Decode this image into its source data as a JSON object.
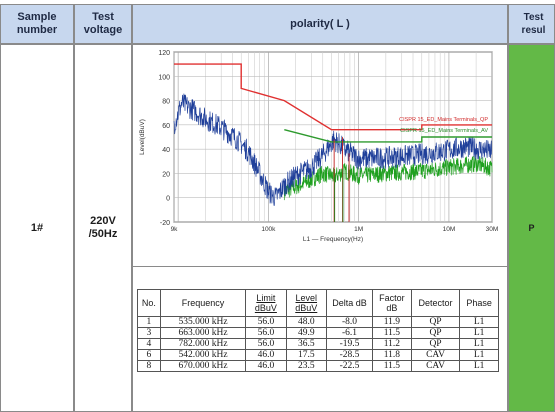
{
  "header": {
    "sample_number": "Sample number",
    "test_voltage": "Test voltage",
    "polarity": "polarity( L )",
    "test_result": "Test resul"
  },
  "row": {
    "sample": "1#",
    "voltage": "220V /50Hz",
    "result": "P"
  },
  "chart_data": {
    "type": "line",
    "xlabel": "L1 — Frequency(Hz)",
    "ylabel": "Level(dBuV)",
    "x_scale": "log",
    "xlim": [
      9000,
      30000000
    ],
    "ylim": [
      -20,
      120
    ],
    "x_ticks": [
      "9k",
      "100k",
      "1M",
      "10M",
      "30M"
    ],
    "y_ticks": [
      "120",
      "100",
      "80",
      "60",
      "40",
      "20",
      "0",
      "-20"
    ],
    "grid": true,
    "legend": [
      "CISPR 15_ED_Mains Terminals_QP",
      "CISPR 15_ED_Mains Terminals_AV"
    ],
    "series": [
      {
        "name": "CISPR 15_ED_Mains Terminals_QP",
        "color": "#e03030",
        "points": [
          [
            9000,
            110
          ],
          [
            50000,
            110
          ],
          [
            50000,
            90
          ],
          [
            150000,
            80
          ],
          [
            500000,
            56
          ],
          [
            5000000,
            56
          ],
          [
            5000000,
            60
          ],
          [
            30000000,
            60
          ]
        ]
      },
      {
        "name": "CISPR 15_ED_Mains Terminals_AV",
        "color": "#2e9a2e",
        "points": [
          [
            150000,
            56
          ],
          [
            500000,
            46
          ],
          [
            5000000,
            46
          ],
          [
            5000000,
            50
          ],
          [
            30000000,
            50
          ]
        ]
      },
      {
        "name": "",
        "color": "#1f3f9a",
        "role": "measured peak trace",
        "points": [
          [
            9000,
            60
          ],
          [
            11000,
            78
          ],
          [
            15000,
            72
          ],
          [
            20000,
            65
          ],
          [
            30000,
            58
          ],
          [
            45000,
            48
          ],
          [
            60000,
            38
          ],
          [
            80000,
            20
          ],
          [
            100000,
            5
          ],
          [
            120000,
            0
          ],
          [
            150000,
            10
          ],
          [
            200000,
            18
          ],
          [
            300000,
            25
          ],
          [
            400000,
            35
          ],
          [
            535000,
            48
          ],
          [
            700000,
            40
          ],
          [
            1000000,
            32
          ],
          [
            2000000,
            33
          ],
          [
            4000000,
            35
          ],
          [
            8000000,
            38
          ],
          [
            15000000,
            42
          ],
          [
            22000000,
            40
          ],
          [
            30000000,
            38
          ]
        ]
      },
      {
        "name": "",
        "color": "#1fa01f",
        "role": "measured average trace",
        "points": [
          [
            150000,
            5
          ],
          [
            250000,
            12
          ],
          [
            400000,
            20
          ],
          [
            542000,
            17.5
          ],
          [
            700000,
            22
          ],
          [
            1000000,
            18
          ],
          [
            2000000,
            20
          ],
          [
            5000000,
            22
          ],
          [
            10000000,
            25
          ],
          [
            20000000,
            28
          ],
          [
            30000000,
            24
          ]
        ]
      }
    ]
  },
  "results_table": {
    "headers": [
      "No.",
      "Frequency",
      "Limit dBuV",
      "Level dBuV",
      "Delta dB",
      "Factor dB",
      "Detector",
      "Phase"
    ],
    "rows": [
      [
        "1",
        "535.000 kHz",
        "56.0",
        "48.0",
        "-8.0",
        "11.9",
        "QP",
        "L1"
      ],
      [
        "3",
        "663.000 kHz",
        "56.0",
        "49.9",
        "-6.1",
        "11.5",
        "QP",
        "L1"
      ],
      [
        "4",
        "782.000 kHz",
        "56.0",
        "36.5",
        "-19.5",
        "11.2",
        "QP",
        "L1"
      ],
      [
        "6",
        "542.000 kHz",
        "46.0",
        "17.5",
        "-28.5",
        "11.8",
        "CAV",
        "L1"
      ],
      [
        "8",
        "670.000 kHz",
        "46.0",
        "23.5",
        "-22.5",
        "11.5",
        "CAV",
        "L1"
      ]
    ]
  }
}
